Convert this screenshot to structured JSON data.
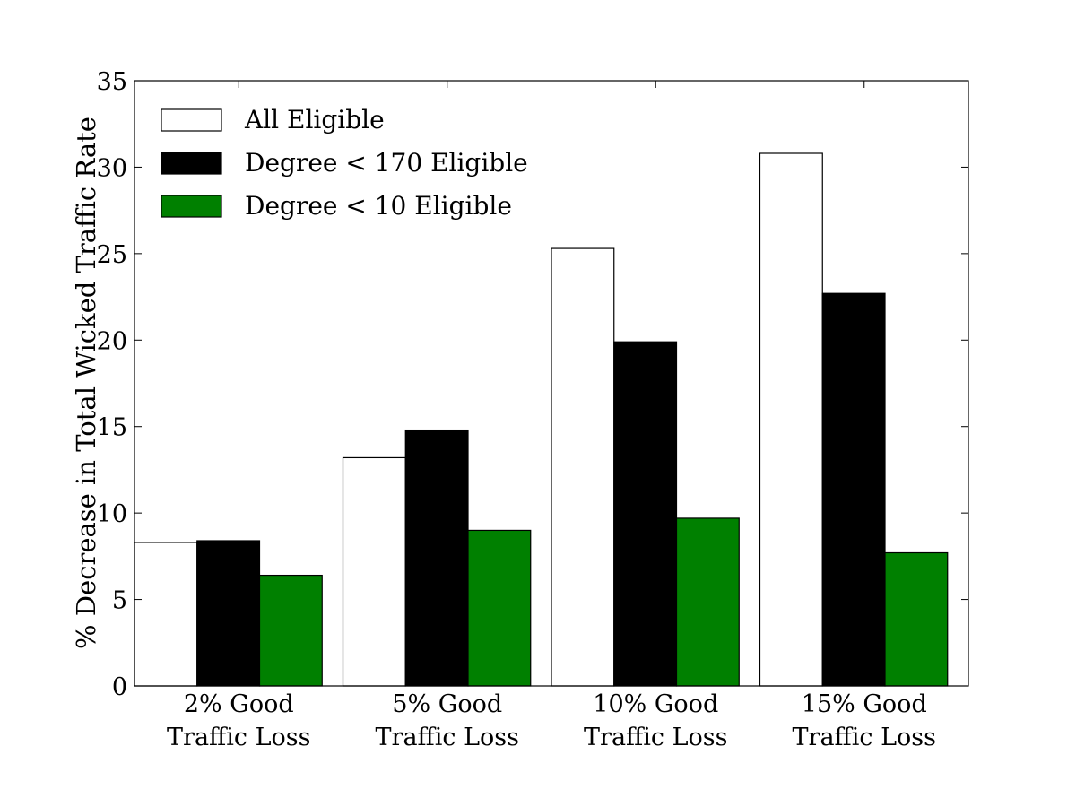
{
  "chart_data": {
    "type": "bar",
    "title": "",
    "xlabel": "",
    "ylabel": "% Decrease in Total Wicked Traffic Rate",
    "ylim": [
      0,
      35
    ],
    "yticks": [
      "0",
      "5",
      "10",
      "15",
      "20",
      "25",
      "30",
      "35"
    ],
    "categories": [
      [
        "2% Good",
        "Traffic Loss"
      ],
      [
        "5% Good",
        "Traffic Loss"
      ],
      [
        "10% Good",
        "Traffic Loss"
      ],
      [
        "15% Good",
        "Traffic Loss"
      ]
    ],
    "series": [
      {
        "name": "All Eligible",
        "color": "#ffffff",
        "values": [
          8.3,
          13.2,
          25.3,
          30.8
        ]
      },
      {
        "name": "Degree < 170 Eligible",
        "color": "#000000",
        "values": [
          8.4,
          14.8,
          19.9,
          22.7
        ]
      },
      {
        "name": "Degree < 10 Eligible",
        "color": "#008000",
        "values": [
          6.4,
          9.0,
          9.7,
          7.7
        ]
      }
    ],
    "legend_position": "top-left",
    "grid": false
  }
}
